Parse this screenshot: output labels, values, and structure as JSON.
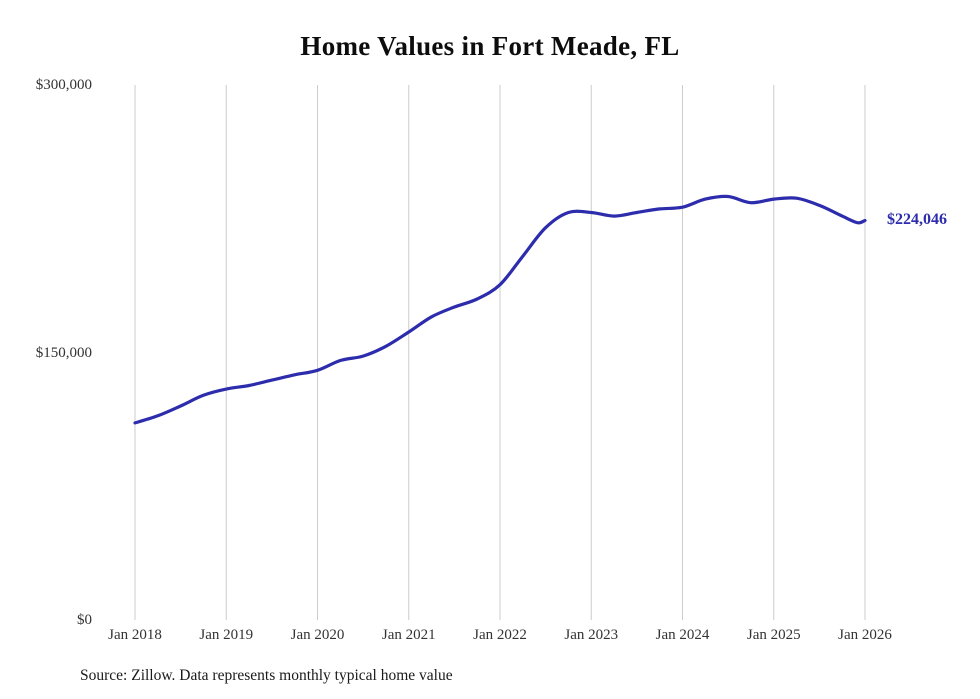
{
  "title": "Home Values in Fort Meade, FL",
  "footer": {
    "source": "Source: Zillow. Data represents monthly typical home value"
  },
  "colors": {
    "line": "#2c2cac",
    "grid": "#cccccc",
    "tick_text": "#333333",
    "title_text": "#0d0d0d"
  },
  "chart_data": {
    "type": "line",
    "title": "Home Values in Fort Meade, FL",
    "xlabel": "",
    "ylabel": "",
    "ylim": [
      0,
      300000
    ],
    "y_ticks": [
      0,
      150000,
      300000
    ],
    "y_tick_labels": [
      "$0",
      "$150,000",
      "$300,000"
    ],
    "x_tick_labels": [
      "Jan 2018",
      "Jan 2019",
      "Jan 2020",
      "Jan 2021",
      "Jan 2022",
      "Jan 2023",
      "Jan 2024",
      "Jan 2025",
      "Jan 2026"
    ],
    "grid": "vertical-only",
    "legend": "none",
    "series": [
      {
        "name": "Typical home value",
        "points": [
          [
            "2018-01",
            110500
          ],
          [
            "2018-04",
            114500
          ],
          [
            "2018-07",
            120000
          ],
          [
            "2018-10",
            126000
          ],
          [
            "2019-01",
            129500
          ],
          [
            "2019-04",
            131500
          ],
          [
            "2019-07",
            134500
          ],
          [
            "2019-10",
            137500
          ],
          [
            "2020-01",
            140000
          ],
          [
            "2020-04",
            145500
          ],
          [
            "2020-07",
            148000
          ],
          [
            "2020-10",
            153500
          ],
          [
            "2021-01",
            161500
          ],
          [
            "2021-04",
            170000
          ],
          [
            "2021-07",
            175500
          ],
          [
            "2021-10",
            180000
          ],
          [
            "2022-01",
            188000
          ],
          [
            "2022-04",
            204000
          ],
          [
            "2022-07",
            220000
          ],
          [
            "2022-10",
            228500
          ],
          [
            "2023-01",
            228500
          ],
          [
            "2023-04",
            226500
          ],
          [
            "2023-07",
            228500
          ],
          [
            "2023-10",
            230500
          ],
          [
            "2024-01",
            231500
          ],
          [
            "2024-04",
            236000
          ],
          [
            "2024-07",
            237500
          ],
          [
            "2024-10",
            234000
          ],
          [
            "2025-01",
            236000
          ],
          [
            "2025-04",
            236500
          ],
          [
            "2025-07",
            232500
          ],
          [
            "2025-10",
            226500
          ],
          [
            "2025-12",
            222800
          ],
          [
            "2026-01",
            224046
          ]
        ]
      }
    ],
    "annotation": {
      "label": "$224,046",
      "value": 224046,
      "position": "end-of-line"
    }
  }
}
